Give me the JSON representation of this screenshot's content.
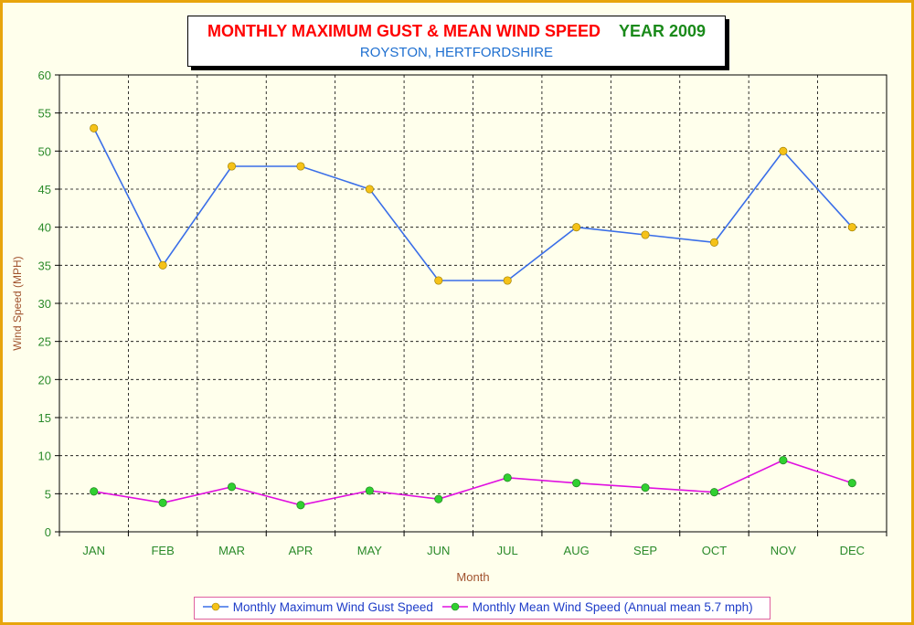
{
  "title": {
    "main": "MONTHLY MAXIMUM GUST & MEAN WIND SPEED",
    "year": "YEAR 2009",
    "subtitle": "ROYSTON, HERTFORDSHIRE"
  },
  "colors": {
    "background_frame": "#e8a50c",
    "plot_background": "#ffffec",
    "title_main": "#ff0000",
    "title_year": "#1a8a1a",
    "subtitle": "#1e6fd0",
    "axis_text": "#2a8a2a",
    "axis_title": "#a0522d",
    "gust_line": "#3a6ee8",
    "gust_marker": "#f5c218",
    "mean_line": "#e010e0",
    "mean_marker": "#30d030"
  },
  "chart_data": {
    "type": "line",
    "categories": [
      "JAN",
      "FEB",
      "MAR",
      "APR",
      "MAY",
      "JUN",
      "JUL",
      "AUG",
      "SEP",
      "OCT",
      "NOV",
      "DEC"
    ],
    "series": [
      {
        "name": "Monthly Maximum Wind Gust Speed",
        "values": [
          53,
          35,
          48,
          48,
          45,
          33,
          33,
          40,
          39,
          38,
          50,
          40
        ]
      },
      {
        "name": "Monthly Mean Wind Speed (Annual mean 5.7 mph)",
        "values": [
          5.3,
          3.8,
          5.9,
          3.5,
          5.4,
          4.3,
          7.1,
          6.4,
          5.8,
          5.2,
          9.4,
          6.4
        ]
      }
    ],
    "xlabel": "Month",
    "ylabel": "Wind Speed (MPH)",
    "ylim": [
      0,
      60
    ],
    "yticks": [
      "0",
      "5",
      "10",
      "15",
      "20",
      "25",
      "30",
      "35",
      "40",
      "45",
      "50",
      "55",
      "60"
    ],
    "grid": true,
    "legend_position": "bottom"
  }
}
